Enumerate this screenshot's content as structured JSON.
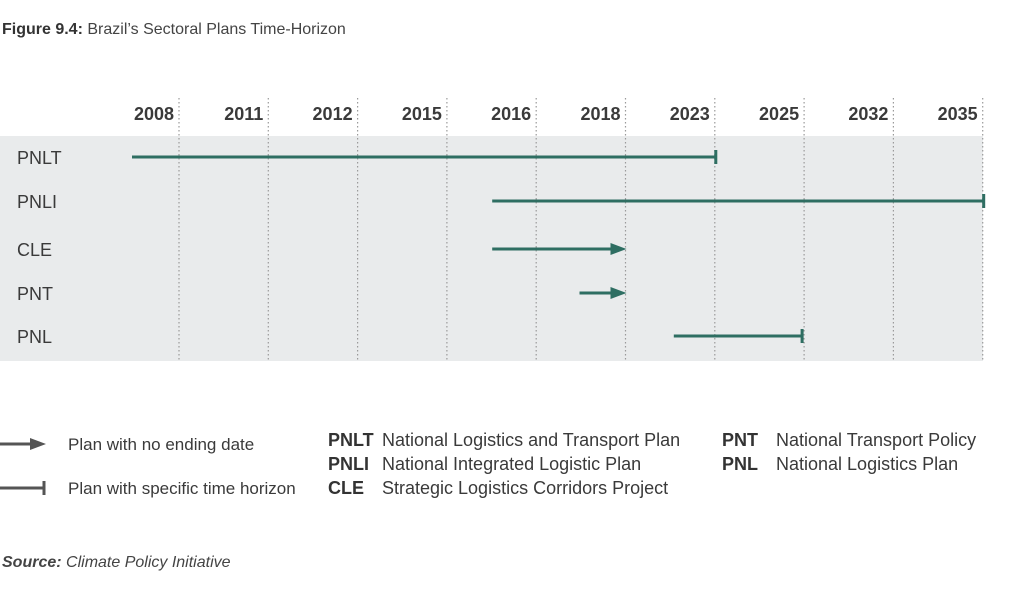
{
  "figure": {
    "label": "Figure 9.4:",
    "title": "Brazil’s Sectoral Plans Time-Horizon"
  },
  "chart_data": {
    "type": "timeline",
    "columns": [
      "2008",
      "2011",
      "2012",
      "2015",
      "2016",
      "2018",
      "2023",
      "2025",
      "2032",
      "2035"
    ],
    "rows": [
      {
        "name": "PNLT",
        "start": "2008",
        "end": "2023",
        "style": "time-horizon"
      },
      {
        "name": "PNLI",
        "start": "2016",
        "end": "2035",
        "style": "time-horizon"
      },
      {
        "name": "CLE",
        "start": "2016",
        "end": "2018",
        "style": "no-ending-date"
      },
      {
        "name": "PNT",
        "start": "2018",
        "end": "2018",
        "style": "no-ending-date"
      },
      {
        "name": "PNL",
        "start": "2023",
        "end": "2025",
        "style": "time-horizon"
      }
    ],
    "colors": {
      "bar": "#2e6e62",
      "band": "#e9ebec",
      "grid": "#9a9a9a"
    }
  },
  "legend": {
    "arrow_label": "Plan with no ending date",
    "bar_label": "Plan with specific time horizon"
  },
  "abbreviations": [
    {
      "abbr": "PNLT",
      "text": "National Logistics and Transport Plan"
    },
    {
      "abbr": "PNLI",
      "text": "National Integrated Logistic Plan"
    },
    {
      "abbr": "CLE",
      "text": "Strategic Logistics Corridors Project"
    },
    {
      "abbr": "PNT",
      "text": "National Transport Policy"
    },
    {
      "abbr": "PNL",
      "text": "National Logistics Plan"
    }
  ],
  "source": {
    "label": "Source:",
    "text": "Climate Policy Initiative"
  }
}
